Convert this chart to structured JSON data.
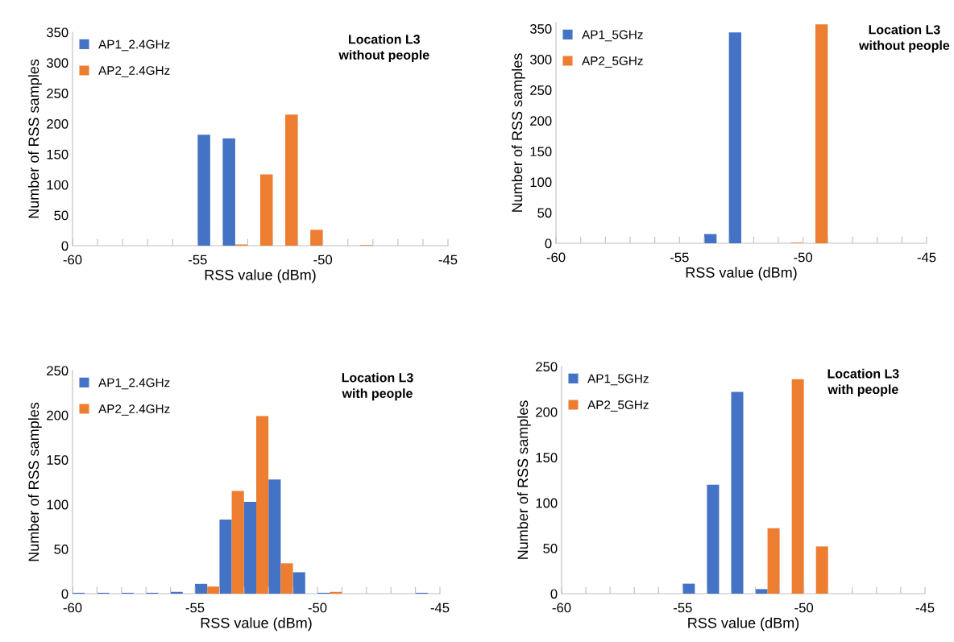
{
  "chart_data": [
    {
      "type": "histogram",
      "title": "Location L3\nwithout people",
      "xlabel": "RSS value (dBm)",
      "ylabel": "Number of RSS samples",
      "bins": [
        -60,
        -59,
        -58,
        -57,
        -56,
        -55,
        -54,
        -53,
        -52,
        -51,
        -50,
        -49,
        -48,
        -47,
        -46,
        -45
      ],
      "series": [
        {
          "name": "AP1_2.4GHz",
          "color": "#4472c4",
          "values": [
            0,
            0,
            0,
            0,
            0,
            182,
            176,
            0,
            0,
            0,
            0,
            0,
            0,
            0,
            0
          ]
        },
        {
          "name": "AP2_2.4GHz",
          "color": "#ed7d31",
          "values": [
            0,
            0,
            0,
            0,
            0,
            0,
            2,
            117,
            215,
            26,
            0,
            1,
            0,
            0,
            0
          ]
        }
      ],
      "xlim": [
        -60,
        -45
      ],
      "xticks": [
        -60,
        {
          "value": -59,
          "label": null
        },
        {
          "value": -58,
          "label": null
        },
        {
          "value": -57,
          "label": null
        },
        {
          "value": -56,
          "label": null
        },
        -55,
        {
          "value": -54,
          "label": null
        },
        {
          "value": -53,
          "label": null
        },
        {
          "value": -52,
          "label": null
        },
        {
          "value": -51,
          "label": null
        },
        -50,
        {
          "value": -49,
          "label": null
        },
        {
          "value": -48,
          "label": null
        },
        {
          "value": -47,
          "label": null
        },
        {
          "value": -46,
          "label": null
        },
        -45
      ],
      "ylim": [
        0,
        350
      ],
      "yticks": [
        0,
        50,
        100,
        150,
        200,
        250,
        300,
        350
      ],
      "legend": "top left"
    },
    {
      "type": "histogram",
      "title": "Location L3\nwithout people",
      "xlabel": "RSS value (dBm)",
      "ylabel": "Number of RSS samples",
      "bins": [
        -60,
        -59,
        -58,
        -57,
        -56,
        -55,
        -54,
        -53,
        -52,
        -51,
        -50,
        -49,
        -48,
        -47,
        -46,
        -45
      ],
      "series": [
        {
          "name": "AP1_5GHz",
          "color": "#4472c4",
          "values": [
            0,
            0,
            0,
            0,
            0,
            0,
            15,
            344,
            0,
            0,
            0,
            0,
            0,
            0,
            0
          ]
        },
        {
          "name": "AP2_5GHz",
          "color": "#ed7d31",
          "values": [
            0,
            0,
            0,
            0,
            0,
            0,
            0,
            0,
            0,
            1,
            357,
            0,
            0,
            0,
            0
          ]
        }
      ],
      "xlim": [
        -60,
        -45
      ],
      "xticks": [
        -60,
        {
          "value": -59,
          "label": null
        },
        {
          "value": -58,
          "label": null
        },
        {
          "value": -57,
          "label": null
        },
        {
          "value": -56,
          "label": null
        },
        -55,
        {
          "value": -54,
          "label": null
        },
        {
          "value": -53,
          "label": null
        },
        {
          "value": -52,
          "label": null
        },
        {
          "value": -51,
          "label": null
        },
        -50,
        {
          "value": -49,
          "label": null
        },
        {
          "value": -48,
          "label": null
        },
        {
          "value": -47,
          "label": null
        },
        {
          "value": -46,
          "label": null
        },
        -45
      ],
      "ylim": [
        0,
        360
      ],
      "yticks": [
        0,
        50,
        100,
        150,
        200,
        250,
        300,
        350
      ],
      "legend": "top left"
    },
    {
      "type": "histogram",
      "title": "Location L3\nwith people",
      "xlabel": "RSS value (dBm)",
      "ylabel": "Number of RSS samples",
      "bins": [
        -60,
        -59,
        -58,
        -57,
        -56,
        -55,
        -54,
        -53,
        -52,
        -51,
        -50,
        -49,
        -48,
        -47,
        -46,
        -45
      ],
      "series": [
        {
          "name": "AP1_2.4GHz",
          "color": "#4472c4",
          "values": [
            1,
            1,
            1,
            1,
            2,
            11,
            83,
            103,
            128,
            24,
            1,
            0,
            0,
            0,
            1
          ]
        },
        {
          "name": "AP2_2.4GHz",
          "color": "#ed7d31",
          "values": [
            0,
            0,
            0,
            0,
            0,
            8,
            115,
            199,
            34,
            0,
            2,
            0,
            0,
            0,
            0
          ]
        }
      ],
      "xlim": [
        -60,
        -45
      ],
      "xticks": [
        -60,
        {
          "value": -59,
          "label": null
        },
        {
          "value": -58,
          "label": null
        },
        {
          "value": -57,
          "label": null
        },
        {
          "value": -56,
          "label": null
        },
        -55,
        {
          "value": -54,
          "label": null
        },
        {
          "value": -53,
          "label": null
        },
        {
          "value": -52,
          "label": null
        },
        {
          "value": -51,
          "label": null
        },
        -50,
        {
          "value": -49,
          "label": null
        },
        {
          "value": -48,
          "label": null
        },
        {
          "value": -47,
          "label": null
        },
        {
          "value": -46,
          "label": null
        },
        -45
      ],
      "ylim": [
        0,
        250
      ],
      "yticks": [
        0,
        50,
        100,
        150,
        200,
        250
      ],
      "legend": "top left"
    },
    {
      "type": "histogram",
      "title": "Location L3\nwith people",
      "xlabel": "RSS value (dBm)",
      "ylabel": "Number of RSS samples",
      "bins": [
        -60,
        -59,
        -58,
        -57,
        -56,
        -55,
        -54,
        -53,
        -52,
        -51,
        -50,
        -49,
        -48,
        -47,
        -46,
        -45
      ],
      "series": [
        {
          "name": "AP1_5GHz",
          "color": "#4472c4",
          "values": [
            0,
            0,
            0,
            0,
            0,
            11,
            120,
            222,
            5,
            0,
            0,
            0,
            0,
            0,
            0
          ]
        },
        {
          "name": "AP2_5GHz",
          "color": "#ed7d31",
          "values": [
            0,
            0,
            0,
            0,
            0,
            0,
            0,
            0,
            72,
            236,
            52,
            0,
            0,
            0,
            0
          ]
        }
      ],
      "xlim": [
        -60,
        -45
      ],
      "xticks": [
        -60,
        {
          "value": -59,
          "label": null
        },
        {
          "value": -58,
          "label": null
        },
        {
          "value": -57,
          "label": null
        },
        {
          "value": -56,
          "label": null
        },
        -55,
        {
          "value": -54,
          "label": null
        },
        {
          "value": -53,
          "label": null
        },
        {
          "value": -52,
          "label": null
        },
        {
          "value": -51,
          "label": null
        },
        -50,
        {
          "value": -49,
          "label": null
        },
        {
          "value": -48,
          "label": null
        },
        {
          "value": -47,
          "label": null
        },
        {
          "value": -46,
          "label": null
        },
        -45
      ],
      "ylim": [
        0,
        250
      ],
      "yticks": [
        0,
        50,
        100,
        150,
        200,
        250
      ],
      "legend": "top left"
    }
  ]
}
